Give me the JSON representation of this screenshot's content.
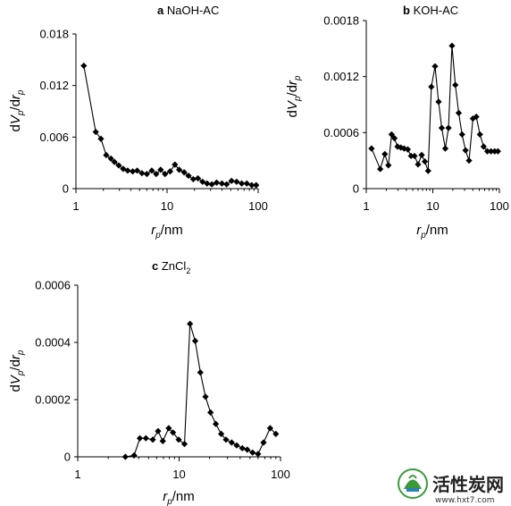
{
  "chart_data": [
    {
      "type": "line",
      "panel_letter": "a",
      "title": "NaOH-AC",
      "xscale": "log",
      "xlim": [
        1,
        100
      ],
      "ylim": [
        0,
        0.018
      ],
      "xticks": [
        {
          "v": 1,
          "label": "1"
        },
        {
          "v": 10,
          "label": "10"
        },
        {
          "v": 100,
          "label": "100"
        }
      ],
      "yticks": [
        {
          "v": 0,
          "label": "0"
        },
        {
          "v": 0.006,
          "label": "0.006"
        },
        {
          "v": 0.012,
          "label": "0.012"
        },
        {
          "v": 0.018,
          "label": "0.018"
        }
      ],
      "xlabel": {
        "main": "r",
        "sub": "p",
        "rest": "/nm"
      },
      "ylabel": {
        "p1": "dV",
        "s1": "p",
        "p2": "/dr",
        "s2": "p"
      },
      "marker": "diamond",
      "x": [
        1.22,
        1.65,
        1.88,
        2.15,
        2.42,
        2.65,
        2.95,
        3.3,
        3.7,
        4.2,
        4.7,
        5.3,
        6.0,
        6.8,
        7.6,
        8.5,
        9.5,
        10.8,
        12.2,
        13.6,
        15.4,
        17.2,
        19.4,
        21.8,
        24.5,
        27.5,
        31,
        35,
        40,
        45,
        51,
        58,
        66,
        75,
        85,
        95
      ],
      "y": [
        0.0143,
        0.0066,
        0.0058,
        0.0039,
        0.0035,
        0.0031,
        0.0027,
        0.0023,
        0.0021,
        0.002,
        0.0021,
        0.0018,
        0.0017,
        0.0021,
        0.0017,
        0.0022,
        0.0017,
        0.002,
        0.0028,
        0.0022,
        0.0019,
        0.0015,
        0.0011,
        0.0012,
        0.0008,
        0.0006,
        0.0005,
        0.0007,
        0.0006,
        0.0005,
        0.0009,
        0.0008,
        0.0006,
        0.0006,
        0.0004,
        0.0004
      ]
    },
    {
      "type": "line",
      "panel_letter": "b",
      "title": "KOH-AC",
      "xscale": "log",
      "xlim": [
        1,
        100
      ],
      "ylim": [
        0,
        0.0018
      ],
      "xticks": [
        {
          "v": 1,
          "label": "1"
        },
        {
          "v": 10,
          "label": "10"
        },
        {
          "v": 100,
          "label": "100"
        }
      ],
      "yticks": [
        {
          "v": 0,
          "label": "0"
        },
        {
          "v": 0.0006,
          "label": "0.0006"
        },
        {
          "v": 0.0012,
          "label": "0.0012"
        },
        {
          "v": 0.0018,
          "label": "0.0018"
        }
      ],
      "xlabel": {
        "main": "r",
        "sub": "p",
        "rest": "/nm"
      },
      "ylabel": {
        "p1": "dV",
        "s1": "p",
        "p2": "/dr",
        "s2": "p"
      },
      "marker": "diamond",
      "x": [
        1.2,
        1.62,
        1.9,
        2.15,
        2.4,
        2.65,
        2.95,
        3.3,
        3.7,
        4.2,
        4.7,
        5.3,
        6.0,
        6.8,
        7.6,
        8.5,
        9.5,
        10.8,
        12.2,
        13.6,
        15.4,
        17.2,
        19.4,
        21.8,
        24.5,
        27.5,
        31,
        35,
        40,
        45,
        51,
        58,
        66,
        75,
        85,
        95
      ],
      "y": [
        0.00043,
        0.00021,
        0.00037,
        0.00025,
        0.00058,
        0.00054,
        0.00045,
        0.00044,
        0.00043,
        0.00042,
        0.00035,
        0.00035,
        0.00026,
        0.00036,
        0.00029,
        0.00019,
        0.00109,
        0.00131,
        0.00093,
        0.00065,
        0.00043,
        0.00065,
        0.00153,
        0.00111,
        0.00081,
        0.00058,
        0.00041,
        0.0003,
        0.00075,
        0.00077,
        0.00058,
        0.00045,
        0.0004,
        0.0004,
        0.0004,
        0.0004
      ]
    },
    {
      "type": "line",
      "panel_letter": "c",
      "title": "ZnCl",
      "title_sub": "2",
      "xscale": "log",
      "xlim": [
        1,
        100
      ],
      "ylim": [
        0,
        0.0006
      ],
      "xticks": [
        {
          "v": 1,
          "label": "1"
        },
        {
          "v": 10,
          "label": "10"
        },
        {
          "v": 100,
          "label": "100"
        }
      ],
      "yticks": [
        {
          "v": 0,
          "label": "0"
        },
        {
          "v": 0.0002,
          "label": "0.0002"
        },
        {
          "v": 0.0004,
          "label": "0.0004"
        },
        {
          "v": 0.0006,
          "label": "0.0006"
        }
      ],
      "xlabel": {
        "main": "r",
        "sub": "p",
        "rest": "/nm"
      },
      "ylabel": {
        "p1": "dV",
        "s1": "p",
        "p2": "/dr",
        "s2": "p"
      },
      "marker": "diamond",
      "x": [
        2.95,
        3.6,
        4.1,
        4.7,
        5.5,
        6.2,
        6.9,
        7.9,
        8.7,
        9.9,
        11.3,
        12.8,
        14.4,
        16.2,
        18.2,
        20.4,
        23,
        26,
        29,
        33,
        37,
        42,
        47,
        53,
        60,
        68,
        79,
        90
      ],
      "y": [
        0,
        5e-06,
        6.5e-05,
        6.5e-05,
        6e-05,
        9e-05,
        5.5e-05,
        0.0001,
        8.5e-05,
        6e-05,
        4.5e-05,
        0.000465,
        0.000405,
        0.000295,
        0.00021,
        0.000155,
        0.000115,
        8e-05,
        6e-05,
        5e-05,
        4e-05,
        3e-05,
        2.5e-05,
        1.5e-05,
        1e-05,
        5e-05,
        0.0001,
        8e-05
      ]
    }
  ],
  "watermark": {
    "name": "活性炭网",
    "url": "www.hxt7.com"
  }
}
